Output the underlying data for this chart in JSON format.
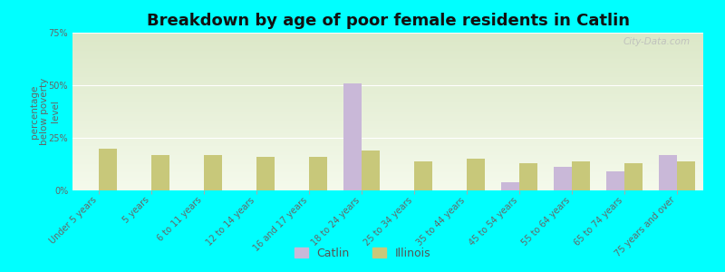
{
  "title": "Breakdown by age of poor female residents in Catlin",
  "ylabel": "percentage\nbelow poverty\nlevel",
  "categories": [
    "Under 5 years",
    "5 years",
    "6 to 11 years",
    "12 to 14 years",
    "16 and 17 years",
    "18 to 24 years",
    "25 to 34 years",
    "35 to 44 years",
    "45 to 54 years",
    "55 to 64 years",
    "65 to 74 years",
    "75 years and over"
  ],
  "catlin_values": [
    0,
    0,
    0,
    0,
    0,
    51,
    0,
    0,
    4,
    11,
    9,
    17
  ],
  "illinois_values": [
    20,
    17,
    17,
    16,
    16,
    19,
    14,
    15,
    13,
    14,
    13,
    14
  ],
  "catlin_color": "#c9b8d8",
  "illinois_color": "#c8c87a",
  "bg_color": "#00ffff",
  "plot_bg_top": "#dce8c8",
  "plot_bg_bottom": "#f5faec",
  "ylim": [
    0,
    75
  ],
  "yticks": [
    0,
    25,
    50,
    75
  ],
  "ytick_labels": [
    "0%",
    "25%",
    "50%",
    "75%"
  ],
  "title_fontsize": 13,
  "axis_label_fontsize": 7.5,
  "tick_label_fontsize": 7,
  "legend_fontsize": 9,
  "watermark": "City-Data.com"
}
